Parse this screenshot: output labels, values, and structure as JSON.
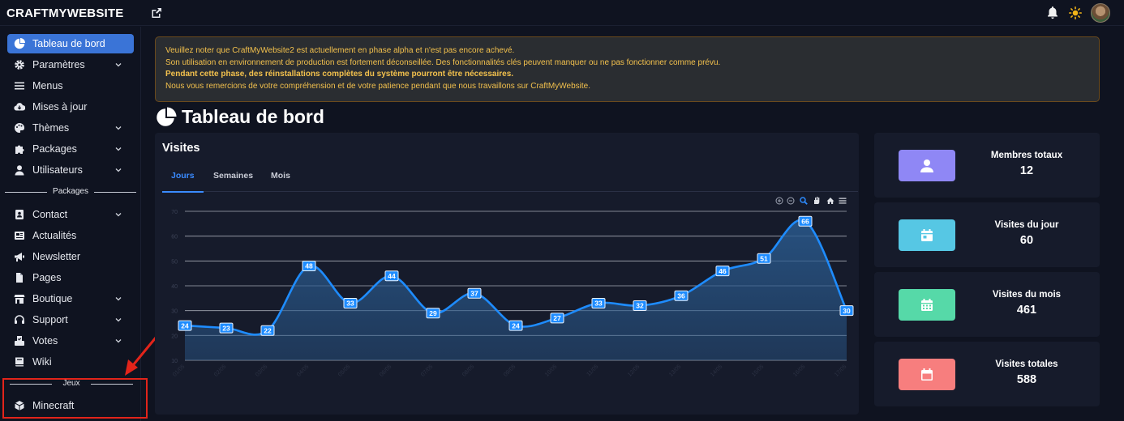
{
  "header": {
    "logo_text": "CRAFTMYWEBSITE",
    "icons": [
      "external-link-icon",
      "bell-icon",
      "sun-icon",
      "avatar"
    ]
  },
  "sidebar": {
    "items": [
      {
        "label": "Tableau de bord",
        "icon": "pie-chart-icon",
        "active": true
      },
      {
        "label": "Paramètres",
        "icon": "gear-icon",
        "has_submenu": true
      },
      {
        "label": "Menus",
        "icon": "bars-icon"
      },
      {
        "label": "Mises à jour",
        "icon": "cloud-download-icon"
      },
      {
        "label": "Thèmes",
        "icon": "palette-icon",
        "has_submenu": true
      },
      {
        "label": "Packages",
        "icon": "puzzle-icon",
        "has_submenu": true
      },
      {
        "label": "Utilisateurs",
        "icon": "user-icon",
        "has_submenu": true
      }
    ],
    "section_packages": "Packages",
    "package_items": [
      {
        "label": "Contact",
        "icon": "address-book-icon",
        "has_submenu": true
      },
      {
        "label": "Actualités",
        "icon": "newspaper-icon"
      },
      {
        "label": "Newsletter",
        "icon": "megaphone-icon"
      },
      {
        "label": "Pages",
        "icon": "file-icon"
      },
      {
        "label": "Boutique",
        "icon": "store-icon",
        "has_submenu": true
      },
      {
        "label": "Support",
        "icon": "headset-icon",
        "has_submenu": true
      },
      {
        "label": "Votes",
        "icon": "vote-icon",
        "has_submenu": true
      },
      {
        "label": "Wiki",
        "icon": "book-icon"
      }
    ],
    "section_games": "Jeux",
    "game_items": [
      {
        "label": "Minecraft",
        "icon": "cube-icon"
      }
    ]
  },
  "alert": {
    "line1": "Veuillez noter que CraftMyWebsite2 est actuellement en phase alpha et n'est pas encore achevé.",
    "line2": "Son utilisation en environnement de production est fortement déconseillée. Des fonctionnalités clés peuvent manquer ou ne pas fonctionner comme prévu.",
    "line3": "Pendant cette phase, des réinstallations complètes du système pourront être nécessaires.",
    "line4": "Nous vous remercions de votre compréhension et de votre patience pendant que nous travaillons sur CraftMyWebsite."
  },
  "page_title": "Tableau de bord",
  "visits": {
    "title": "Visites",
    "tabs": [
      "Jours",
      "Semaines",
      "Mois"
    ],
    "active_tab": 0,
    "toolbar_icons": [
      "zoom-in-icon",
      "zoom-out-icon",
      "zoom-select-icon",
      "pan-hand-icon",
      "reset-home-icon",
      "menu-icon"
    ]
  },
  "chart_data": {
    "type": "area",
    "title": "",
    "x": [
      "01/05",
      "02/05",
      "03/05",
      "04/05",
      "05/05",
      "06/05",
      "07/05",
      "08/05",
      "09/05",
      "10/05",
      "11/05",
      "12/05",
      "13/05",
      "14/05",
      "15/05",
      "16/05",
      "17/05"
    ],
    "series": [
      {
        "values": [
          24,
          23,
          22,
          48,
          33,
          44,
          29,
          37,
          24,
          27,
          33,
          32,
          36,
          46,
          51,
          66,
          30
        ]
      }
    ],
    "y_ticks": [
      10,
      20,
      30,
      40,
      50,
      60,
      70
    ],
    "ylim": [
      10,
      70
    ],
    "grid": true,
    "data_labels": true,
    "colors": {
      "line": "#1e8cff",
      "fill": "#2a5a8e"
    }
  },
  "stats": [
    {
      "label": "Membres totaux",
      "value": "12",
      "icon": "user-icon",
      "color": "#8f87f5"
    },
    {
      "label": "Visites du jour",
      "value": "60",
      "icon": "calendar-day-icon",
      "color": "#56c7e4"
    },
    {
      "label": "Visites du mois",
      "value": "461",
      "icon": "calendar-grid-icon",
      "color": "#56d9a8"
    },
    {
      "label": "Visites totales",
      "value": "588",
      "icon": "calendar-icon",
      "color": "#f77e7e"
    }
  ],
  "colors": {
    "background": "#0f1320",
    "card": "#161b2b",
    "accent": "#3a74d7",
    "alert_text": "#f3c14d",
    "highlight_box": "#e2241a"
  }
}
